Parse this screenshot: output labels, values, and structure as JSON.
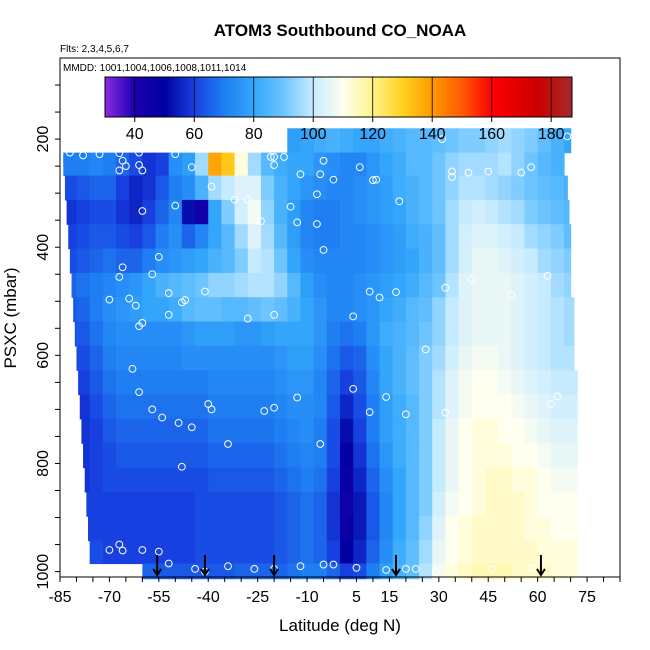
{
  "chart_data": {
    "type": "heatmap",
    "title": "ATOM3 Southbound CO_NOAA",
    "subtitle": "Flts: 2,3,4,5,6,7",
    "annotation": "MMDD: 1001,1004,1006,1008,1011,1014",
    "xlabel": "Latitude (deg N)",
    "ylabel": "PSXC (mbar)",
    "xlim": [
      -85,
      85
    ],
    "ylim": [
      1010,
      50
    ],
    "y_reversed": true,
    "x_ticks": [
      -85,
      -70,
      -55,
      -40,
      -25,
      -10,
      5,
      15,
      30,
      45,
      60,
      75
    ],
    "y_ticks": [
      200,
      400,
      600,
      800,
      1000
    ],
    "colorbar": {
      "range": [
        30,
        187
      ],
      "ticks": [
        40,
        60,
        80,
        100,
        120,
        140,
        160,
        180
      ],
      "stops": [
        {
          "v": 30,
          "c": "#8a2be2"
        },
        {
          "v": 40,
          "c": "#1a00b0"
        },
        {
          "v": 50,
          "c": "#0000a0"
        },
        {
          "v": 60,
          "c": "#1840e0"
        },
        {
          "v": 70,
          "c": "#1e7ef2"
        },
        {
          "v": 80,
          "c": "#33a6fb"
        },
        {
          "v": 90,
          "c": "#6dc4ff"
        },
        {
          "v": 100,
          "c": "#c6ebff"
        },
        {
          "v": 110,
          "c": "#fffff0"
        },
        {
          "v": 120,
          "c": "#fff38a"
        },
        {
          "v": 130,
          "c": "#ffd21e"
        },
        {
          "v": 140,
          "c": "#ff9a00"
        },
        {
          "v": 150,
          "c": "#ff5a00"
        },
        {
          "v": 160,
          "c": "#ff0000"
        },
        {
          "v": 175,
          "c": "#cc0000"
        },
        {
          "v": 187,
          "c": "#a52a2a"
        }
      ]
    },
    "pressure_levels": [
      205,
      245,
      290,
      335,
      380,
      425,
      470,
      515,
      560,
      605,
      650,
      695,
      740,
      785,
      830,
      875,
      920,
      965,
      1005
    ],
    "lat_bins": [
      -82,
      -78,
      -74,
      -70,
      -66,
      -62,
      -58,
      -54,
      -50,
      -46,
      -42,
      -38,
      -34,
      -30,
      -26,
      -22,
      -18,
      -14,
      -10,
      -6,
      -2,
      2,
      6,
      10,
      14,
      18,
      22,
      26,
      30,
      34,
      38,
      42,
      46,
      50,
      54,
      58,
      62,
      66,
      70
    ],
    "coverage": [
      {
        "p": 205,
        "lat_min": -21.5,
        "lat_max": 70
      },
      {
        "p": 245,
        "lat_min": -84,
        "lat_max": 68
      },
      {
        "p": 290,
        "lat_min": -83.5,
        "lat_max": 69
      },
      {
        "p": 335,
        "lat_min": -83,
        "lat_max": 69.5
      },
      {
        "p": 380,
        "lat_min": -82.5,
        "lat_max": 70
      },
      {
        "p": 425,
        "lat_min": -82,
        "lat_max": 70
      },
      {
        "p": 470,
        "lat_min": -81.5,
        "lat_max": 70
      },
      {
        "p": 515,
        "lat_min": -81,
        "lat_max": 71
      },
      {
        "p": 560,
        "lat_min": -80.5,
        "lat_max": 71
      },
      {
        "p": 605,
        "lat_min": -80,
        "lat_max": 71
      },
      {
        "p": 650,
        "lat_min": -79.5,
        "lat_max": 72
      },
      {
        "p": 695,
        "lat_min": -79,
        "lat_max": 72
      },
      {
        "p": 740,
        "lat_min": -78.5,
        "lat_max": 72
      },
      {
        "p": 785,
        "lat_min": -78,
        "lat_max": 72
      },
      {
        "p": 830,
        "lat_min": -77.5,
        "lat_max": 72
      },
      {
        "p": 875,
        "lat_min": -77,
        "lat_max": 72
      },
      {
        "p": 920,
        "lat_min": -76.5,
        "lat_max": 72
      },
      {
        "p": 965,
        "lat_min": -76,
        "lat_max": 72
      },
      {
        "p": 1005,
        "lat_min": -65,
        "lat_max": 72
      }
    ],
    "upper_left_block": {
      "p_top": 230,
      "p_bottom": 245,
      "lat_min": -84,
      "lat_max": -21.5
    },
    "values": [
      [
        0,
        0,
        0,
        0,
        0,
        0,
        0,
        0,
        0,
        0,
        0,
        0,
        0,
        0,
        0,
        0,
        0,
        78,
        80,
        82,
        84,
        82,
        80,
        80,
        82,
        84,
        86,
        86,
        88,
        90,
        92,
        92,
        94,
        96,
        94,
        92,
        88,
        84,
        80
      ],
      [
        70,
        70,
        72,
        70,
        66,
        62,
        58,
        60,
        74,
        78,
        96,
        138,
        132,
        112,
        96,
        86,
        82,
        80,
        80,
        76,
        74,
        72,
        72,
        76,
        80,
        82,
        86,
        86,
        90,
        94,
        96,
        96,
        96,
        98,
        94,
        90,
        86,
        84,
        82
      ],
      [
        62,
        64,
        66,
        66,
        60,
        56,
        58,
        64,
        70,
        74,
        84,
        96,
        100,
        104,
        104,
        92,
        84,
        80,
        76,
        74,
        72,
        72,
        74,
        76,
        78,
        82,
        84,
        86,
        90,
        94,
        98,
        98,
        96,
        94,
        92,
        90,
        88,
        86,
        84
      ],
      [
        58,
        60,
        62,
        62,
        58,
        56,
        60,
        66,
        72,
        52,
        44,
        80,
        92,
        102,
        108,
        94,
        84,
        78,
        72,
        70,
        70,
        72,
        74,
        76,
        78,
        80,
        84,
        86,
        90,
        96,
        100,
        102,
        100,
        98,
        96,
        92,
        90,
        88,
        86
      ],
      [
        60,
        62,
        64,
        64,
        62,
        60,
        64,
        70,
        74,
        66,
        72,
        80,
        86,
        96,
        104,
        96,
        86,
        78,
        72,
        70,
        70,
        72,
        72,
        74,
        76,
        78,
        82,
        84,
        88,
        96,
        102,
        104,
        104,
        102,
        100,
        96,
        94,
        92,
        88
      ],
      [
        62,
        64,
        66,
        68,
        66,
        66,
        70,
        74,
        76,
        78,
        80,
        84,
        86,
        92,
        100,
        98,
        90,
        80,
        74,
        72,
        72,
        72,
        72,
        74,
        76,
        78,
        80,
        84,
        88,
        96,
        102,
        106,
        106,
        104,
        102,
        100,
        96,
        94,
        92
      ],
      [
        66,
        68,
        70,
        72,
        74,
        76,
        80,
        84,
        86,
        88,
        90,
        94,
        94,
        96,
        98,
        98,
        94,
        86,
        78,
        74,
        72,
        72,
        74,
        76,
        78,
        80,
        82,
        86,
        90,
        98,
        104,
        106,
        106,
        106,
        104,
        102,
        100,
        96,
        94
      ],
      [
        64,
        66,
        70,
        74,
        76,
        78,
        80,
        80,
        82,
        86,
        88,
        88,
        86,
        86,
        88,
        90,
        88,
        84,
        80,
        76,
        72,
        72,
        74,
        76,
        80,
        82,
        86,
        88,
        94,
        100,
        104,
        106,
        106,
        106,
        104,
        102,
        100,
        98,
        96
      ],
      [
        62,
        64,
        68,
        72,
        74,
        74,
        74,
        74,
        74,
        76,
        78,
        78,
        78,
        76,
        76,
        78,
        80,
        80,
        80,
        76,
        70,
        68,
        70,
        76,
        82,
        84,
        86,
        90,
        94,
        100,
        104,
        106,
        106,
        106,
        104,
        102,
        100,
        98,
        96
      ],
      [
        60,
        62,
        66,
        70,
        72,
        72,
        72,
        72,
        72,
        74,
        74,
        74,
        74,
        74,
        74,
        74,
        76,
        78,
        78,
        74,
        68,
        64,
        66,
        74,
        80,
        84,
        88,
        92,
        96,
        102,
        106,
        108,
        108,
        106,
        104,
        102,
        100,
        98,
        98
      ],
      [
        58,
        60,
        64,
        68,
        70,
        70,
        70,
        70,
        70,
        70,
        70,
        72,
        72,
        72,
        72,
        72,
        74,
        76,
        76,
        72,
        66,
        60,
        64,
        72,
        80,
        84,
        88,
        92,
        98,
        104,
        108,
        110,
        110,
        108,
        106,
        104,
        102,
        100,
        100
      ],
      [
        56,
        58,
        62,
        66,
        68,
        68,
        68,
        68,
        68,
        68,
        68,
        70,
        70,
        70,
        70,
        70,
        72,
        74,
        74,
        72,
        64,
        56,
        62,
        70,
        78,
        82,
        86,
        92,
        98,
        104,
        108,
        110,
        110,
        110,
        108,
        106,
        104,
        102,
        102
      ],
      [
        56,
        58,
        60,
        64,
        66,
        66,
        66,
        66,
        66,
        66,
        66,
        68,
        68,
        68,
        68,
        68,
        70,
        72,
        74,
        70,
        62,
        52,
        60,
        70,
        78,
        82,
        86,
        92,
        100,
        106,
        110,
        112,
        112,
        110,
        110,
        108,
        106,
        104,
        104
      ],
      [
        58,
        58,
        60,
        62,
        64,
        64,
        64,
        64,
        64,
        64,
        64,
        66,
        66,
        66,
        66,
        66,
        68,
        70,
        72,
        70,
        62,
        48,
        58,
        68,
        76,
        82,
        86,
        92,
        100,
        106,
        110,
        112,
        112,
        112,
        110,
        110,
        108,
        106,
        106
      ],
      [
        58,
        58,
        60,
        62,
        62,
        62,
        62,
        62,
        62,
        62,
        62,
        64,
        64,
        64,
        64,
        64,
        66,
        68,
        70,
        68,
        60,
        46,
        56,
        66,
        74,
        80,
        86,
        92,
        100,
        106,
        110,
        112,
        114,
        114,
        112,
        112,
        110,
        108,
        108
      ],
      [
        60,
        60,
        60,
        60,
        60,
        60,
        60,
        60,
        60,
        60,
        62,
        62,
        62,
        62,
        62,
        62,
        64,
        66,
        68,
        66,
        58,
        44,
        54,
        64,
        72,
        80,
        86,
        92,
        102,
        108,
        110,
        112,
        114,
        114,
        114,
        112,
        110,
        110,
        110
      ],
      [
        60,
        60,
        60,
        60,
        60,
        60,
        60,
        60,
        60,
        60,
        62,
        62,
        62,
        62,
        62,
        62,
        64,
        66,
        68,
        66,
        58,
        46,
        54,
        64,
        72,
        80,
        86,
        94,
        104,
        110,
        112,
        114,
        114,
        114,
        114,
        112,
        112,
        110,
        110
      ],
      [
        62,
        62,
        62,
        60,
        60,
        60,
        60,
        60,
        60,
        60,
        62,
        62,
        62,
        62,
        62,
        62,
        64,
        66,
        68,
        66,
        60,
        50,
        56,
        66,
        74,
        82,
        88,
        96,
        106,
        110,
        112,
        114,
        114,
        114,
        114,
        114,
        112,
        112,
        112
      ],
      [
        0,
        0,
        0,
        0,
        0,
        0,
        66,
        64,
        64,
        64,
        64,
        64,
        64,
        66,
        66,
        66,
        66,
        68,
        70,
        70,
        66,
        60,
        62,
        70,
        78,
        84,
        88,
        98,
        108,
        112,
        114,
        116,
        116,
        116,
        114,
        114,
        114,
        112,
        112
      ]
    ],
    "samples": [
      [
        -82,
        225
      ],
      [
        -78,
        230
      ],
      [
        -73,
        228
      ],
      [
        -67,
        226
      ],
      [
        -66,
        240
      ],
      [
        -65,
        250
      ],
      [
        -67,
        258
      ],
      [
        -61,
        225
      ],
      [
        -61,
        248
      ],
      [
        -60,
        258
      ],
      [
        -50,
        228
      ],
      [
        -45,
        252
      ],
      [
        -39,
        288
      ],
      [
        -32,
        312
      ],
      [
        -28,
        312
      ],
      [
        -21,
        233
      ],
      [
        -20,
        248
      ],
      [
        -20,
        233
      ],
      [
        -17,
        233
      ],
      [
        -13,
        354
      ],
      [
        -7,
        357
      ],
      [
        -5,
        240
      ],
      [
        -12,
        265
      ],
      [
        -6,
        265
      ],
      [
        -2,
        275
      ],
      [
        6,
        252
      ],
      [
        10,
        276
      ],
      [
        11,
        275
      ],
      [
        18,
        315
      ],
      [
        31,
        200
      ],
      [
        34,
        260
      ],
      [
        34,
        270
      ],
      [
        39,
        262
      ],
      [
        45,
        260
      ],
      [
        55,
        262
      ],
      [
        58,
        252
      ],
      [
        69,
        195
      ],
      [
        -66,
        437
      ],
      [
        -67,
        455
      ],
      [
        -64,
        495
      ],
      [
        -70,
        497
      ],
      [
        -62,
        508
      ],
      [
        -60,
        540
      ],
      [
        -61,
        546
      ],
      [
        -52,
        485
      ],
      [
        -52,
        525
      ],
      [
        -41,
        482
      ],
      [
        -28,
        532
      ],
      [
        -20,
        525
      ],
      [
        -55,
        418
      ],
      [
        -57,
        450
      ],
      [
        -47,
        498
      ],
      [
        -48,
        502
      ],
      [
        -15,
        325
      ],
      [
        -7,
        302
      ],
      [
        -24,
        352
      ],
      [
        -60,
        333
      ],
      [
        -50,
        323
      ],
      [
        -5,
        405
      ],
      [
        4,
        528
      ],
      [
        9,
        482
      ],
      [
        12,
        493
      ],
      [
        17,
        483
      ],
      [
        32,
        475
      ],
      [
        40,
        460
      ],
      [
        52,
        488
      ],
      [
        63,
        453
      ],
      [
        -63,
        625
      ],
      [
        -61,
        668
      ],
      [
        -57,
        700
      ],
      [
        -54,
        715
      ],
      [
        -49,
        725
      ],
      [
        -45,
        733
      ],
      [
        -40,
        690
      ],
      [
        -39,
        700
      ],
      [
        -34,
        764
      ],
      [
        -23,
        703
      ],
      [
        -20,
        697
      ],
      [
        -13,
        678
      ],
      [
        -6,
        764
      ],
      [
        4,
        662
      ],
      [
        9,
        705
      ],
      [
        14,
        677
      ],
      [
        20,
        709
      ],
      [
        26,
        589
      ],
      [
        32,
        706
      ],
      [
        42,
        706
      ],
      [
        52,
        693
      ],
      [
        64,
        690
      ],
      [
        66,
        676
      ],
      [
        -48,
        806
      ],
      [
        -70,
        960
      ],
      [
        -67,
        950
      ],
      [
        -66,
        961
      ],
      [
        -60,
        960
      ],
      [
        -55,
        963
      ],
      [
        -52,
        985
      ],
      [
        -44,
        995
      ],
      [
        -41,
        1000
      ],
      [
        -34,
        990
      ],
      [
        -26,
        995
      ],
      [
        -20,
        995
      ],
      [
        -12,
        990
      ],
      [
        -5,
        987
      ],
      [
        -2,
        987
      ],
      [
        5,
        993
      ],
      [
        14,
        997
      ],
      [
        20,
        995
      ],
      [
        23,
        995
      ],
      [
        29,
        1002
      ],
      [
        46,
        995
      ],
      [
        58,
        993
      ]
    ],
    "arrows": [
      -55.5,
      -41,
      -20,
      17,
      61
    ]
  }
}
